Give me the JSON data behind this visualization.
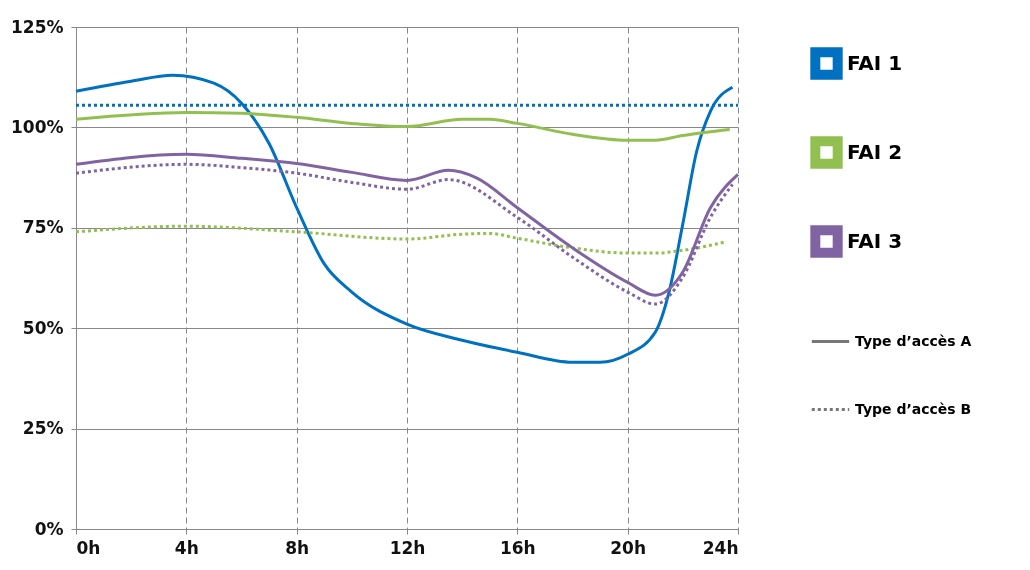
{
  "chart_data": {
    "type": "line",
    "xlim": [
      0,
      24
    ],
    "xticks": [
      {
        "value": 0,
        "label": "0h"
      },
      {
        "value": 4,
        "label": "4h"
      },
      {
        "value": 8,
        "label": "8h"
      },
      {
        "value": 12,
        "label": "12h"
      },
      {
        "value": 16,
        "label": "16h"
      },
      {
        "value": 20,
        "label": "20h"
      },
      {
        "value": 24,
        "label": "24h"
      }
    ],
    "ylim": [
      0,
      125
    ],
    "yticks": [
      {
        "value": 0,
        "label": "0%"
      },
      {
        "value": 25,
        "label": "25%"
      },
      {
        "value": 50,
        "label": "50%"
      },
      {
        "value": 75,
        "label": "75%"
      },
      {
        "value": 100,
        "label": "100%"
      },
      {
        "value": 125,
        "label": "125%"
      }
    ],
    "grid": true,
    "legend": "right",
    "marker": "none",
    "annotations": [
      "Type d’accès A",
      "Type d’accès B"
    ],
    "series": [
      {
        "name": "FAI 1",
        "color": "#0070c0",
        "line_style": "solid",
        "x": [
          0,
          2,
          3.5,
          5,
          6,
          7,
          8,
          9,
          10,
          12,
          14,
          16,
          18,
          19,
          20,
          21,
          21.5,
          22,
          22.5,
          23,
          23.8
        ],
        "values": [
          109,
          111.5,
          113,
          111,
          106,
          96,
          80,
          66,
          59,
          51,
          47,
          44,
          41.5,
          41.5,
          43.5,
          49,
          59,
          76,
          94,
          104,
          110
        ]
      },
      {
        "color": "#0070c0",
        "line_style": "dotted",
        "x": [
          0,
          24
        ],
        "values": [
          105.5,
          105.5
        ]
      },
      {
        "name": "FAI 2",
        "color": "#92c050",
        "line_style": "solid",
        "x": [
          0,
          4,
          6,
          8,
          10,
          12,
          14,
          15,
          16,
          18,
          20,
          21,
          22,
          23.7
        ],
        "values": [
          102,
          103.7,
          103.5,
          102.5,
          101,
          100.2,
          102,
          102,
          101,
          98.3,
          96.8,
          96.8,
          98,
          99.5
        ]
      },
      {
        "color": "#92c050",
        "line_style": "dotted",
        "x": [
          0,
          4,
          8,
          12,
          14,
          15,
          16,
          18,
          20,
          21,
          22,
          23.5
        ],
        "values": [
          74,
          75.4,
          74,
          72.2,
          73.4,
          73.6,
          72.4,
          70,
          68.7,
          68.7,
          69.4,
          71.4
        ]
      },
      {
        "name": "FAI 3",
        "color": "#8064a2",
        "line_style": "solid",
        "x": [
          0,
          4,
          6,
          8,
          10,
          12,
          13.5,
          14.5,
          16,
          18,
          20,
          21,
          22,
          23,
          24
        ],
        "values": [
          90.8,
          93.3,
          92.3,
          91,
          88.8,
          86.8,
          89.3,
          87.5,
          80,
          70,
          61.4,
          58.2,
          64,
          80,
          88.3
        ]
      },
      {
        "color": "#8064a2",
        "line_style": "dotted",
        "x": [
          0,
          4,
          6,
          8,
          10,
          12,
          13.5,
          16,
          18,
          20,
          21,
          22,
          23,
          23.8
        ],
        "values": [
          88.6,
          90.8,
          90,
          88.6,
          86.3,
          84.6,
          87,
          77.6,
          67.7,
          59,
          56,
          62.7,
          77.6,
          85.8
        ]
      }
    ]
  }
}
